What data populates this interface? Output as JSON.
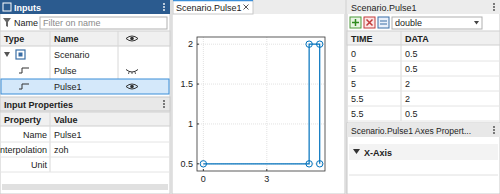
{
  "inputs_panel": {
    "title": "Inputs",
    "filter_label": "Name",
    "filter_placeholder": "Filter on name",
    "columns": [
      "Type",
      "Name"
    ],
    "rows": [
      {
        "name": "Scenario",
        "kind": "scenario"
      },
      {
        "name": "Pulse",
        "kind": "signal",
        "visible": false
      },
      {
        "name": "Pulse1",
        "kind": "signal",
        "visible": true,
        "selected": true
      }
    ]
  },
  "properties_panel": {
    "title": "Input Properties",
    "columns": [
      "Property",
      "Value"
    ],
    "rows": [
      {
        "property": "Name",
        "value": "Pulse1"
      },
      {
        "property": "Interpolation",
        "value": "zoh"
      },
      {
        "property": "Unit"
      }
    ]
  },
  "chart_data": {
    "type": "line",
    "title": "Scenario.Pulse1",
    "x": [
      0,
      5,
      5,
      5.5,
      5.5
    ],
    "values": [
      0.5,
      0.5,
      2,
      2,
      0.5
    ],
    "xlim": [
      -0.3,
      5.75
    ],
    "ylim": [
      0.41,
      2.09
    ],
    "xticks": [
      0,
      3
    ],
    "yticks": [
      0.5,
      1,
      1.5,
      2
    ],
    "grid": true,
    "marker": "circle",
    "color": "#0072bd"
  },
  "table": {
    "title": "Scenario.Pulse1",
    "data_type": "double",
    "columns": [
      "TIME",
      "DATA"
    ],
    "rows": [
      [
        0,
        0.5
      ],
      [
        5,
        0.5
      ],
      [
        5,
        2
      ],
      [
        5.5,
        2
      ],
      [
        5.5,
        0.5
      ]
    ]
  },
  "axes_properties": {
    "title": "Scenario.Pulse1 Axes Propert...",
    "section": "X-Axis"
  }
}
